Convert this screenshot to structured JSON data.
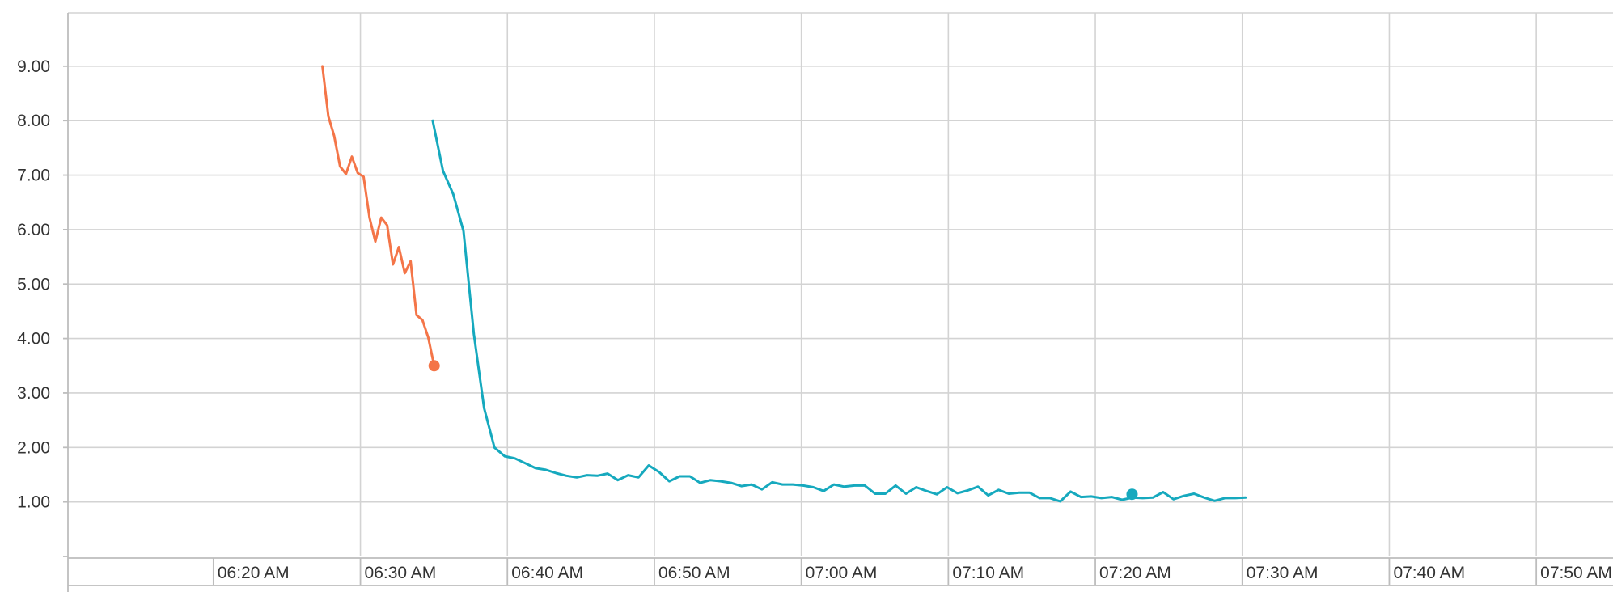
{
  "chart_data": {
    "type": "line",
    "title": "",
    "xlabel": "",
    "ylabel": "",
    "x_ticks": [
      "06:20 AM",
      "06:30 AM",
      "06:40 AM",
      "06:50 AM",
      "07:00 AM",
      "07:10 AM",
      "07:20 AM",
      "07:30 AM",
      "07:40 AM",
      "07:50 AM"
    ],
    "y_ticks": [
      "1.00",
      "2.00",
      "3.00",
      "4.00",
      "5.00",
      "6.00",
      "7.00",
      "8.00",
      "9.00"
    ],
    "xlim": [
      "06:15 AM",
      "07:55 AM"
    ],
    "ylim": [
      0.0,
      10.0
    ],
    "grid": true,
    "legend": "none",
    "colors": {
      "series_1": "#f47548",
      "series_2": "#16a9be"
    },
    "series": [
      {
        "color": "#f47548",
        "end_marker": true,
        "points": [
          [
            "06:27:25",
            9.0
          ],
          [
            "06:27:49",
            8.08
          ],
          [
            "06:28:13",
            7.72
          ],
          [
            "06:28:37",
            7.16
          ],
          [
            "06:29:01",
            7.02
          ],
          [
            "06:29:25",
            7.34
          ],
          [
            "06:29:49",
            7.04
          ],
          [
            "06:30:13",
            6.97
          ],
          [
            "06:30:37",
            6.22
          ],
          [
            "06:31:01",
            5.78
          ],
          [
            "06:31:25",
            6.22
          ],
          [
            "06:31:49",
            6.08
          ],
          [
            "06:32:13",
            5.36
          ],
          [
            "06:32:37",
            5.68
          ],
          [
            "06:33:01",
            5.2
          ],
          [
            "06:33:25",
            5.42
          ],
          [
            "06:33:49",
            4.43
          ],
          [
            "06:34:13",
            4.34
          ],
          [
            "06:34:37",
            4.02
          ],
          [
            "06:35:01",
            3.5
          ]
        ]
      },
      {
        "color": "#16a9be",
        "end_marker": false,
        "marker_at": [
          "07:22:30",
          1.14
        ],
        "points": [
          [
            "06:34:55",
            8.0
          ],
          [
            "06:35:37",
            7.08
          ],
          [
            "06:36:19",
            6.65
          ],
          [
            "06:37:01",
            5.97
          ],
          [
            "06:37:43",
            4.08
          ],
          [
            "06:38:25",
            2.72
          ],
          [
            "06:39:07",
            2.0
          ],
          [
            "06:39:49",
            1.84
          ],
          [
            "06:40:31",
            1.8
          ],
          [
            "06:41:13",
            1.71
          ],
          [
            "06:41:55",
            1.62
          ],
          [
            "06:42:37",
            1.59
          ],
          [
            "06:43:19",
            1.53
          ],
          [
            "06:44:01",
            1.48
          ],
          [
            "06:44:43",
            1.45
          ],
          [
            "06:45:25",
            1.49
          ],
          [
            "06:46:07",
            1.48
          ],
          [
            "06:46:49",
            1.52
          ],
          [
            "06:47:31",
            1.4
          ],
          [
            "06:48:13",
            1.49
          ],
          [
            "06:48:55",
            1.45
          ],
          [
            "06:49:37",
            1.67
          ],
          [
            "06:50:19",
            1.55
          ],
          [
            "06:51:01",
            1.38
          ],
          [
            "06:51:43",
            1.47
          ],
          [
            "06:52:25",
            1.47
          ],
          [
            "06:53:07",
            1.35
          ],
          [
            "06:53:49",
            1.4
          ],
          [
            "06:54:31",
            1.38
          ],
          [
            "06:55:13",
            1.35
          ],
          [
            "06:55:55",
            1.29
          ],
          [
            "06:56:37",
            1.32
          ],
          [
            "06:57:19",
            1.23
          ],
          [
            "06:58:01",
            1.36
          ],
          [
            "06:58:43",
            1.32
          ],
          [
            "06:59:25",
            1.32
          ],
          [
            "07:00:07",
            1.3
          ],
          [
            "07:00:49",
            1.27
          ],
          [
            "07:01:31",
            1.2
          ],
          [
            "07:02:13",
            1.32
          ],
          [
            "07:02:55",
            1.28
          ],
          [
            "07:03:37",
            1.3
          ],
          [
            "07:04:19",
            1.3
          ],
          [
            "07:05:01",
            1.15
          ],
          [
            "07:05:43",
            1.15
          ],
          [
            "07:06:25",
            1.3
          ],
          [
            "07:07:07",
            1.15
          ],
          [
            "07:07:49",
            1.27
          ],
          [
            "07:08:31",
            1.2
          ],
          [
            "07:09:13",
            1.14
          ],
          [
            "07:09:55",
            1.27
          ],
          [
            "07:10:37",
            1.16
          ],
          [
            "07:11:19",
            1.21
          ],
          [
            "07:12:01",
            1.28
          ],
          [
            "07:12:43",
            1.12
          ],
          [
            "07:13:25",
            1.22
          ],
          [
            "07:14:07",
            1.15
          ],
          [
            "07:14:49",
            1.17
          ],
          [
            "07:15:31",
            1.17
          ],
          [
            "07:16:13",
            1.07
          ],
          [
            "07:16:55",
            1.07
          ],
          [
            "07:17:37",
            1.01
          ],
          [
            "07:18:19",
            1.19
          ],
          [
            "07:19:01",
            1.09
          ],
          [
            "07:19:43",
            1.1
          ],
          [
            "07:20:25",
            1.07
          ],
          [
            "07:21:07",
            1.09
          ],
          [
            "07:21:49",
            1.04
          ],
          [
            "07:22:31",
            1.08
          ],
          [
            "07:23:13",
            1.07
          ],
          [
            "07:23:55",
            1.08
          ],
          [
            "07:24:37",
            1.18
          ],
          [
            "07:25:19",
            1.05
          ],
          [
            "07:26:01",
            1.11
          ],
          [
            "07:26:43",
            1.15
          ],
          [
            "07:27:25",
            1.08
          ],
          [
            "07:28:07",
            1.02
          ],
          [
            "07:28:49",
            1.07
          ],
          [
            "07:29:31",
            1.07
          ],
          [
            "07:30:13",
            1.08
          ]
        ]
      }
    ]
  }
}
